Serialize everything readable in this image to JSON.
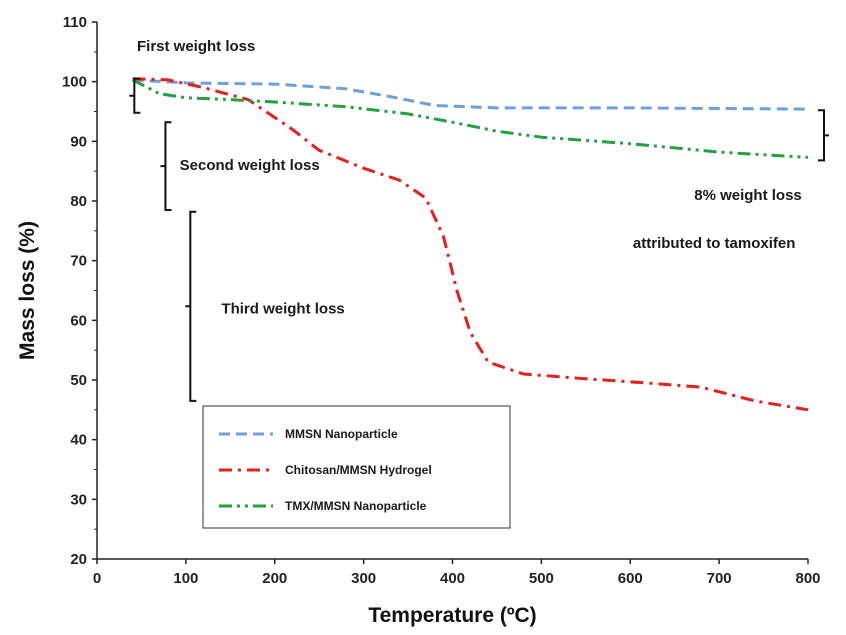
{
  "chart_data": {
    "type": "line",
    "xlabel": "Temperature (ºC)",
    "ylabel": "Mass loss (%)",
    "xlim": [
      0,
      800
    ],
    "ylim": [
      20,
      110
    ],
    "x_ticks": [
      0,
      100,
      200,
      300,
      400,
      500,
      600,
      700,
      800
    ],
    "y_ticks": [
      20,
      30,
      40,
      50,
      60,
      70,
      80,
      90,
      100,
      110
    ],
    "grid": false,
    "legend_position": "bottom-left",
    "series": [
      {
        "name": "MMSN Nanoparticle",
        "color": "#6fa0d8",
        "dash": "dashed",
        "points": [
          [
            40,
            100.3
          ],
          [
            100,
            99.8
          ],
          [
            200,
            99.6
          ],
          [
            280,
            98.8
          ],
          [
            330,
            97.5
          ],
          [
            380,
            96.0
          ],
          [
            450,
            95.6
          ],
          [
            600,
            95.6
          ],
          [
            800,
            95.4
          ]
        ]
      },
      {
        "name": "Chitosan/MMSN Hydrogel",
        "color": "#e61e1e",
        "dash": "dashdot-long",
        "points": [
          [
            40,
            100.5
          ],
          [
            80,
            100.3
          ],
          [
            120,
            99.0
          ],
          [
            170,
            97.0
          ],
          [
            220,
            92.0
          ],
          [
            250,
            88.5
          ],
          [
            300,
            85.5
          ],
          [
            340,
            83.5
          ],
          [
            370,
            80.5
          ],
          [
            390,
            74.0
          ],
          [
            405,
            65.0
          ],
          [
            420,
            58.0
          ],
          [
            440,
            53.0
          ],
          [
            480,
            51.0
          ],
          [
            550,
            50.2
          ],
          [
            620,
            49.5
          ],
          [
            680,
            48.8
          ],
          [
            740,
            46.5
          ],
          [
            800,
            45.0
          ]
        ]
      },
      {
        "name": "TMX/MMSN Nanoparticle",
        "color": "#23a040",
        "dash": "dashdotdot",
        "points": [
          [
            40,
            100.3
          ],
          [
            70,
            98.0
          ],
          [
            100,
            97.3
          ],
          [
            150,
            97.0
          ],
          [
            200,
            96.6
          ],
          [
            280,
            95.8
          ],
          [
            350,
            94.6
          ],
          [
            400,
            93.2
          ],
          [
            450,
            91.7
          ],
          [
            500,
            90.7
          ],
          [
            600,
            89.6
          ],
          [
            700,
            88.2
          ],
          [
            800,
            87.3
          ]
        ]
      }
    ],
    "annotations": [
      {
        "text": "First weight loss",
        "x": 45,
        "y": 106
      },
      {
        "text": "Second weight loss",
        "x": 93,
        "y": 86
      },
      {
        "text": "Third weight loss",
        "x": 140,
        "y": 62
      },
      {
        "text": "8% weight loss",
        "x": 672,
        "y": 81
      },
      {
        "text": "attributed to tamoxifen",
        "x": 603,
        "y": 73
      }
    ],
    "brackets": [
      {
        "y_top": 100.5,
        "y_bottom": 94.8,
        "x": 42
      },
      {
        "y_top": 93.2,
        "y_bottom": 78.5,
        "x": 77
      },
      {
        "y_top": 78.2,
        "y_bottom": 46.5,
        "x": 105
      },
      {
        "y_top": 95.2,
        "y_bottom": 86.8,
        "x": 818,
        "side": "right"
      }
    ]
  }
}
